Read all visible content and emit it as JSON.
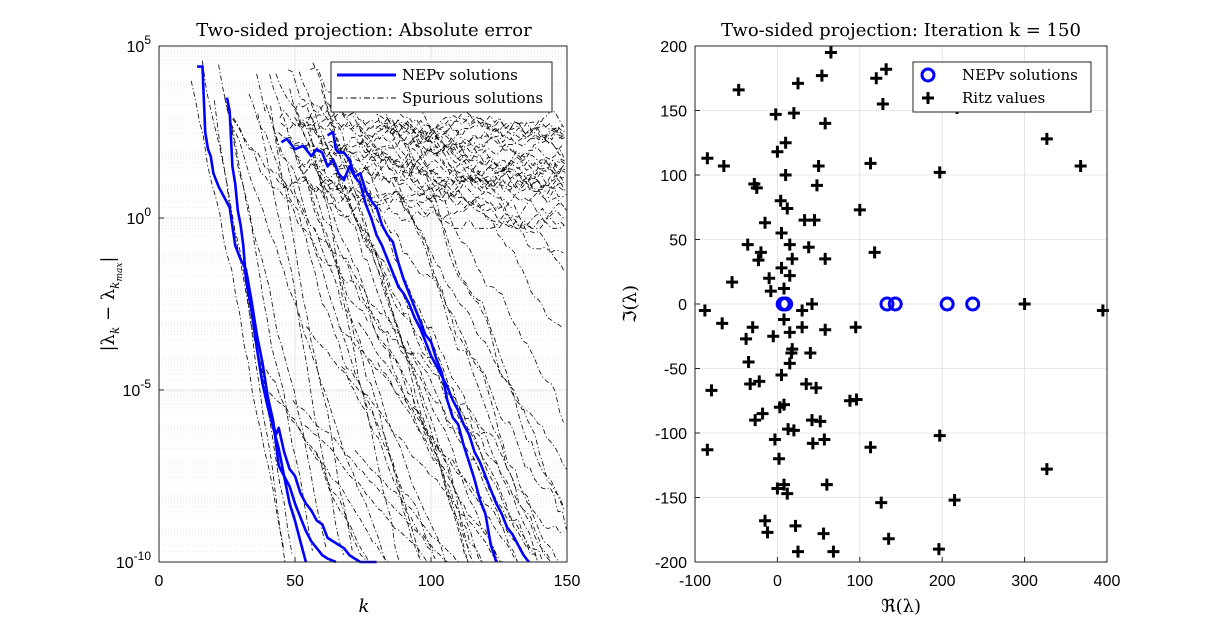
{
  "chart_data": [
    {
      "type": "line",
      "title": "Two-sided projection: Absolute error",
      "xlabel": "k",
      "ylabel": "|λk − λkmax|",
      "ylabel_parts": {
        "main": "|λ",
        "sub1": "k",
        "mid": " − λ",
        "sub2": "k",
        "subsub": "max",
        "end": "|"
      },
      "xlim": [
        0,
        150
      ],
      "ylim_exp": [
        -10,
        5
      ],
      "yscale": "log",
      "grid": true,
      "legend_position": "top-right",
      "x_ticks": [
        "0",
        "50",
        "100",
        "150"
      ],
      "y_ticks": [
        {
          "exp": 5,
          "base": "10",
          "sup": "5"
        },
        {
          "exp": 0,
          "base": "10",
          "sup": "0"
        },
        {
          "exp": -5,
          "base": "10",
          "sup": "-5"
        },
        {
          "exp": -10,
          "base": "10",
          "sup": "-10"
        }
      ],
      "legend": [
        {
          "label": "NEPv solutions",
          "color": "#0000ff",
          "style": "solid"
        },
        {
          "label": "Spurious solutions",
          "color": "#000000",
          "style": "dashdot"
        }
      ],
      "nepv_series": [
        {
          "x": [
            14,
            16,
            17,
            18,
            19,
            20,
            22,
            24,
            26,
            28,
            30,
            32,
            34,
            36,
            38,
            40,
            42,
            44,
            46,
            48,
            50,
            52,
            54
          ],
          "y_exp": [
            4.4,
            4.4,
            2.5,
            2.0,
            1.8,
            1.3,
            0.9,
            0.6,
            0.3,
            -0.8,
            -1.2,
            -1.5,
            -2.4,
            -3.4,
            -4.2,
            -5.2,
            -5.9,
            -7.2,
            -7.5,
            -8.3,
            -8.8,
            -9.4,
            -10
          ]
        },
        {
          "x": [
            25,
            26,
            27,
            28,
            29,
            30,
            31,
            32,
            34,
            36,
            38,
            40,
            42,
            44,
            46,
            48,
            50,
            52,
            54,
            56,
            58,
            60,
            62,
            65
          ],
          "y_exp": [
            3.5,
            3.1,
            1.5,
            1.0,
            0.2,
            -0.2,
            -0.8,
            -1.8,
            -2.7,
            -3.8,
            -4.8,
            -5.5,
            -6.1,
            -6.7,
            -7.5,
            -7.8,
            -8.3,
            -8.7,
            -9.1,
            -9.4,
            -9.6,
            -9.8,
            -9.9,
            -10
          ]
        },
        {
          "x": [
            42,
            43,
            44,
            46,
            48,
            50,
            52,
            54,
            56,
            58,
            60,
            62,
            64,
            66,
            68,
            70,
            72,
            74,
            76,
            78,
            80
          ],
          "y_exp": [
            -6.0,
            -6.3,
            -6.1,
            -6.8,
            -7.3,
            -7.5,
            -8.0,
            -8.3,
            -8.5,
            -8.8,
            -8.9,
            -9.3,
            -9.4,
            -9.5,
            -9.6,
            -9.8,
            -9.9,
            -10,
            -10,
            -10,
            -10
          ]
        },
        {
          "x": [
            45,
            47,
            50,
            53,
            56,
            58,
            60,
            62,
            64,
            66,
            68,
            70,
            72,
            74,
            76,
            78,
            80,
            82,
            84,
            86,
            88,
            90,
            92,
            94,
            96,
            98,
            100,
            102,
            104,
            106,
            108,
            110,
            112,
            114,
            116,
            118,
            120,
            122,
            124
          ],
          "y_exp": [
            2.2,
            2.3,
            2.0,
            2.1,
            1.8,
            2.0,
            1.9,
            1.5,
            1.7,
            1.3,
            1.1,
            1.5,
            1.2,
            1.3,
            0.8,
            0.5,
            0.3,
            -0.2,
            -0.5,
            -0.7,
            -1.3,
            -1.8,
            -2.2,
            -2.6,
            -3.0,
            -3.4,
            -3.6,
            -4.1,
            -4.5,
            -5.3,
            -5.8,
            -6.0,
            -6.6,
            -7.1,
            -7.6,
            -8.2,
            -8.6,
            -9.5,
            -10
          ]
        },
        {
          "x": [
            62,
            64,
            65,
            66,
            68,
            70,
            72,
            74,
            76,
            78,
            80,
            82,
            84,
            86,
            88,
            90,
            92,
            94,
            96,
            98,
            100,
            102,
            104,
            106,
            108,
            110,
            112,
            114,
            116,
            118,
            120,
            122,
            124,
            126,
            128,
            130,
            132,
            134,
            136
          ],
          "y_exp": [
            2.4,
            2.5,
            2.0,
            1.9,
            1.9,
            1.7,
            1.2,
            1.0,
            0.4,
            0.0,
            -0.5,
            -0.8,
            -1.2,
            -1.6,
            -2.0,
            -2.2,
            -2.5,
            -2.9,
            -3.2,
            -3.6,
            -4.0,
            -4.3,
            -4.6,
            -4.9,
            -5.3,
            -5.6,
            -6.0,
            -6.3,
            -6.8,
            -7.1,
            -7.5,
            -7.9,
            -8.3,
            -8.6,
            -9.0,
            -9.2,
            -9.5,
            -9.8,
            -10
          ]
        }
      ]
    },
    {
      "type": "scatter",
      "title": "Two-sided projection: Iteration k = 150",
      "xlabel": "ℜ(λ)",
      "ylabel": "ℑ(λ)",
      "xlim": [
        -100,
        400
      ],
      "ylim": [
        -200,
        200
      ],
      "grid": true,
      "legend_position": "top-right",
      "x_ticks": [
        "-100",
        "0",
        "100",
        "200",
        "300",
        "400"
      ],
      "y_ticks": [
        "-200",
        "-150",
        "-100",
        "-50",
        "0",
        "50",
        "100",
        "150",
        "200"
      ],
      "legend": [
        {
          "label": "NEPv solutions",
          "color": "#0000ff",
          "marker": "circle"
        },
        {
          "label": "Ritz values",
          "color": "#000000",
          "marker": "plus"
        }
      ],
      "nepv_points": [
        [
          7,
          0
        ],
        [
          10,
          0
        ],
        [
          133,
          0
        ],
        [
          143,
          0
        ],
        [
          206,
          0
        ],
        [
          237,
          0
        ]
      ],
      "ritz_points": [
        [
          -85,
          113
        ],
        [
          -85,
          -113
        ],
        [
          -80,
          -67
        ],
        [
          -88,
          -5
        ],
        [
          -65,
          107
        ],
        [
          -67,
          -15
        ],
        [
          -55,
          17
        ],
        [
          -47,
          166
        ],
        [
          -38,
          -27
        ],
        [
          -36,
          46
        ],
        [
          -35,
          -45
        ],
        [
          -33,
          -62
        ],
        [
          -30,
          -18
        ],
        [
          -28,
          93
        ],
        [
          -27,
          -90
        ],
        [
          -25,
          90
        ],
        [
          -23,
          34
        ],
        [
          -22,
          -60
        ],
        [
          -20,
          40
        ],
        [
          -18,
          -85
        ],
        [
          -15,
          63
        ],
        [
          -15,
          -168
        ],
        [
          -12,
          -177
        ],
        [
          -10,
          20
        ],
        [
          -8,
          10
        ],
        [
          -5,
          -25
        ],
        [
          -3,
          -105
        ],
        [
          -2,
          147
        ],
        [
          0,
          118
        ],
        [
          0,
          -143
        ],
        [
          2,
          -120
        ],
        [
          3,
          -80
        ],
        [
          4,
          80
        ],
        [
          5,
          28
        ],
        [
          5,
          55
        ],
        [
          5,
          -55
        ],
        [
          8,
          -12
        ],
        [
          8,
          12
        ],
        [
          8,
          -78
        ],
        [
          8,
          -140
        ],
        [
          10,
          100
        ],
        [
          10,
          125
        ],
        [
          12,
          74
        ],
        [
          12,
          -147
        ],
        [
          13,
          -97
        ],
        [
          15,
          22
        ],
        [
          15,
          -22
        ],
        [
          15,
          46
        ],
        [
          15,
          -46
        ],
        [
          17,
          -38
        ],
        [
          18,
          35
        ],
        [
          18,
          -35
        ],
        [
          20,
          148
        ],
        [
          20,
          -98
        ],
        [
          22,
          -172
        ],
        [
          25,
          171
        ],
        [
          25,
          -192
        ],
        [
          30,
          -5
        ],
        [
          30,
          -18
        ],
        [
          33,
          65
        ],
        [
          35,
          -62
        ],
        [
          38,
          44
        ],
        [
          40,
          -38
        ],
        [
          42,
          0
        ],
        [
          42,
          -90
        ],
        [
          43,
          -108
        ],
        [
          45,
          65
        ],
        [
          47,
          -65
        ],
        [
          48,
          92
        ],
        [
          50,
          107
        ],
        [
          52,
          -91
        ],
        [
          54,
          177
        ],
        [
          56,
          -178
        ],
        [
          57,
          -105
        ],
        [
          58,
          140
        ],
        [
          58,
          35
        ],
        [
          58,
          -20
        ],
        [
          60,
          -140
        ],
        [
          65,
          195
        ],
        [
          68,
          -192
        ],
        [
          88,
          -75
        ],
        [
          95,
          -18
        ],
        [
          96,
          -74
        ],
        [
          100,
          73
        ],
        [
          113,
          109
        ],
        [
          113,
          -111
        ],
        [
          118,
          40
        ],
        [
          120,
          175
        ],
        [
          126,
          -154
        ],
        [
          128,
          155
        ],
        [
          132,
          182
        ],
        [
          135,
          -182
        ],
        [
          196,
          -190
        ],
        [
          197,
          102
        ],
        [
          197,
          -102
        ],
        [
          215,
          -152
        ],
        [
          218,
          152
        ],
        [
          300,
          0
        ],
        [
          327,
          128
        ],
        [
          327,
          -128
        ],
        [
          368,
          107
        ],
        [
          395,
          -5
        ]
      ]
    }
  ]
}
